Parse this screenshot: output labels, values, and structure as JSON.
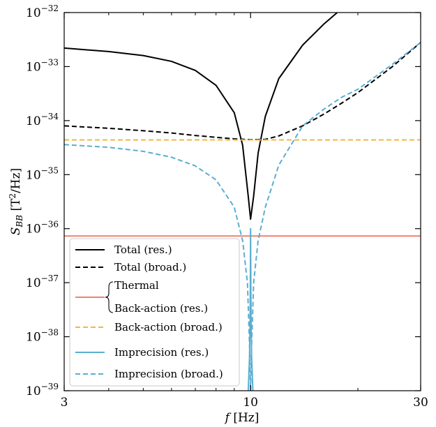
{
  "chart_data": {
    "type": "line",
    "xlabel": "f [Hz]",
    "ylabel": "S_BB [T²/Hz]",
    "xlim": [
      3,
      30
    ],
    "ylim": [
      1e-39,
      1e-32
    ],
    "x_scale": "log",
    "y_scale": "log",
    "grid": false,
    "legend_position": "lower-left",
    "x_ticks": [
      {
        "value": 3,
        "label": "3"
      },
      {
        "value": 10,
        "label": "10"
      },
      {
        "value": 30,
        "label": "30"
      }
    ],
    "y_ticks": [
      {
        "value": 1e-39,
        "label": "10",
        "exp": "−39"
      },
      {
        "value": 1e-38,
        "label": "10",
        "exp": "−38"
      },
      {
        "value": 1e-37,
        "label": "10",
        "exp": "−37"
      },
      {
        "value": 1e-36,
        "label": "10",
        "exp": "−36"
      },
      {
        "value": 1e-35,
        "label": "10",
        "exp": "−35"
      },
      {
        "value": 1e-34,
        "label": "10",
        "exp": "−34"
      },
      {
        "value": 1e-33,
        "label": "10",
        "exp": "−33"
      },
      {
        "value": 1e-32,
        "label": "10",
        "exp": "−32"
      }
    ],
    "series": [
      {
        "name": "Total (res.)",
        "color": "#000000",
        "dash": "solid",
        "x": [
          3,
          4,
          5,
          6,
          7,
          8,
          9,
          9.5,
          9.85,
          10,
          10.2,
          10.5,
          11,
          12,
          14,
          16,
          17.5
        ],
        "y": [
          2.2e-33,
          1.9e-33,
          1.6e-33,
          1.25e-33,
          8.5e-34,
          4.5e-34,
          1.4e-34,
          3.5e-35,
          4e-36,
          1.5e-36,
          4e-36,
          2.5e-35,
          1.2e-34,
          6e-34,
          2.5e-33,
          6e-33,
          1e-32
        ]
      },
      {
        "name": "Total (broad.)",
        "color": "#000000",
        "dash": "dashed",
        "x": [
          3,
          4,
          5,
          6,
          7,
          8,
          9,
          10,
          11,
          12,
          14,
          16,
          18,
          20,
          25,
          30
        ],
        "y": [
          8e-35,
          7.2e-35,
          6.5e-35,
          5.9e-35,
          5.3e-35,
          4.9e-35,
          4.6e-35,
          4.45e-35,
          4.5e-35,
          5.2e-35,
          8e-35,
          1.3e-34,
          2.1e-34,
          3.3e-34,
          1e-33,
          2.8e-33
        ]
      },
      {
        "name": "Thermal Back-action (res.)",
        "color": "#f08070",
        "dash": "solid",
        "x": [
          3,
          30
        ],
        "y": [
          7.3e-37,
          7.3e-37
        ]
      },
      {
        "name": "Back-action (broad.)",
        "color": "#f5b642",
        "dash": "dashed",
        "x": [
          3,
          30
        ],
        "y": [
          4.4e-35,
          4.4e-35
        ]
      },
      {
        "name": "Imprecision (res.)",
        "color": "#5aaed0",
        "dash": "solid",
        "x": [
          9.85,
          9.93,
          9.97,
          9.99,
          10,
          10.01,
          10.03,
          10.07,
          10.15
        ],
        "y": [
          1e-39,
          4e-39,
          2e-38,
          2e-37,
          1e-36,
          2e-37,
          2e-38,
          4e-39,
          1e-39
        ]
      },
      {
        "name": "Imprecision (broad.)",
        "color": "#5aaed0",
        "dash": "dashed",
        "x": [
          3,
          4,
          5,
          6,
          7,
          8,
          9,
          9.5,
          9.8,
          9.95,
          10,
          10.05,
          10.2,
          10.5,
          11,
          12,
          14,
          16,
          18,
          20,
          25,
          30
        ],
        "y": [
          3.6e-35,
          3.2e-35,
          2.7e-35,
          2.1e-35,
          1.45e-35,
          8e-36,
          2.5e-36,
          6e-37,
          1e-37,
          5e-39,
          1e-39,
          5e-39,
          1e-37,
          6e-37,
          2.5e-36,
          1.5e-35,
          8e-35,
          1.6e-34,
          2.7e-34,
          3.8e-34,
          1.1e-33,
          2.8e-33
        ]
      }
    ],
    "legend": {
      "entries": [
        {
          "label": "Total (res.)",
          "color": "#000000",
          "dash": "solid"
        },
        {
          "label": "Total (broad.)",
          "color": "#000000",
          "dash": "dashed"
        },
        {
          "label": "Thermal",
          "label2": "Back-action (res.)",
          "color": "#f08070",
          "dash": "solid",
          "brace": true
        },
        {
          "label": "Back-action (broad.)",
          "color": "#f5b642",
          "dash": "dashed"
        },
        {
          "label": "Imprecision (res.)",
          "color": "#5aaed0",
          "dash": "solid"
        },
        {
          "label": "Imprecision (broad.)",
          "color": "#5aaed0",
          "dash": "dashed"
        }
      ]
    }
  }
}
